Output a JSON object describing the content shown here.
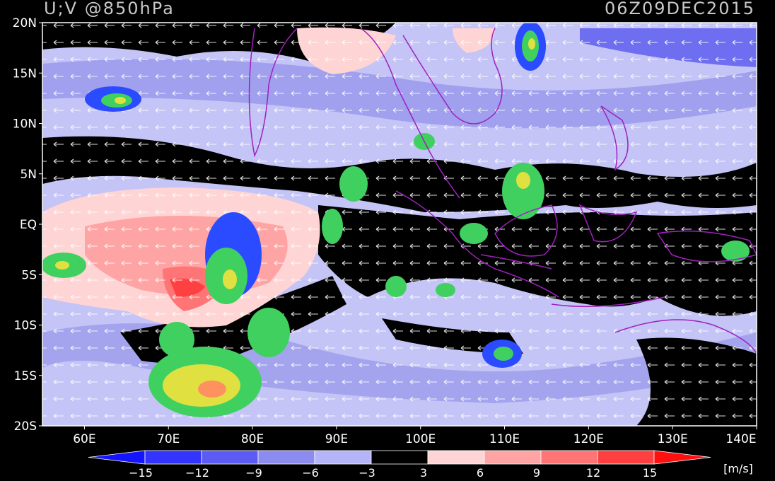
{
  "map": {
    "title": "U;V @850hPa",
    "time": "06Z09DEC2015",
    "xlim": [
      55,
      140
    ],
    "ylim": [
      -20,
      20
    ],
    "lat_ticks": [
      {
        "value": 20,
        "label": "20N"
      },
      {
        "value": 15,
        "label": "15N"
      },
      {
        "value": 10,
        "label": "10N"
      },
      {
        "value": 5,
        "label": "5N"
      },
      {
        "value": 0,
        "label": "EQ"
      },
      {
        "value": -5,
        "label": "5S"
      },
      {
        "value": -10,
        "label": "10S"
      },
      {
        "value": -15,
        "label": "15S"
      },
      {
        "value": -20,
        "label": "20S"
      }
    ],
    "lon_ticks": [
      {
        "value": 60,
        "label": "60E"
      },
      {
        "value": 70,
        "label": "70E"
      },
      {
        "value": 80,
        "label": "80E"
      },
      {
        "value": 90,
        "label": "90E"
      },
      {
        "value": 100,
        "label": "100E"
      },
      {
        "value": 110,
        "label": "110E"
      },
      {
        "value": 120,
        "label": "120E"
      },
      {
        "value": 130,
        "label": "130E"
      },
      {
        "value": 140,
        "label": "140E"
      }
    ],
    "colorbar": {
      "ticks": [
        {
          "value": -15,
          "label": "−15"
        },
        {
          "value": -12,
          "label": "−12"
        },
        {
          "value": -9,
          "label": "−9"
        },
        {
          "value": -6,
          "label": "−6"
        },
        {
          "value": -3,
          "label": "−3"
        },
        {
          "value": 3,
          "label": "3"
        },
        {
          "value": 6,
          "label": "6"
        },
        {
          "value": 9,
          "label": "9"
        },
        {
          "value": 12,
          "label": "12"
        },
        {
          "value": 15,
          "label": "15"
        }
      ],
      "colors": [
        "#1414ff",
        "#3434ff",
        "#5c5cf4",
        "#8c8cf0",
        "#b4b4f8",
        "#000000",
        "#ffd4d4",
        "#ffa4a4",
        "#ff7474",
        "#ff4040",
        "#ff1010"
      ],
      "unit": "[m/s]"
    }
  }
}
